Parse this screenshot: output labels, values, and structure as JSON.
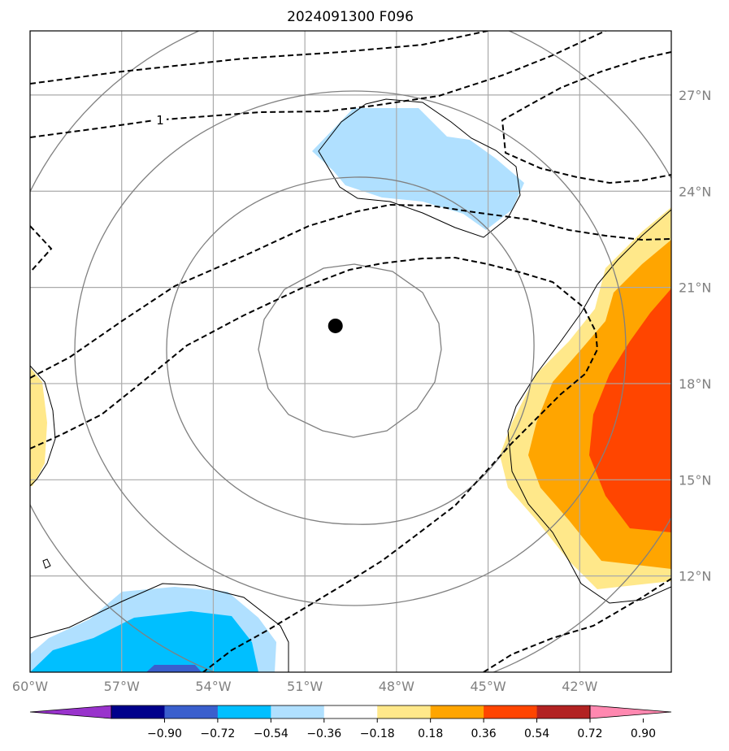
{
  "title": "2024091300 F096",
  "map": {
    "lon_range": [
      -60,
      -39
    ],
    "lat_range": [
      9,
      29
    ],
    "lon_ticks": [
      -60,
      -57,
      -54,
      -51,
      -48,
      -45,
      -42
    ],
    "lat_ticks": [
      12,
      15,
      18,
      21,
      24,
      27
    ],
    "lon_tick_labels": [
      "60°W",
      "57°W",
      "54°W",
      "51°W",
      "48°W",
      "45°W",
      "42°W"
    ],
    "lat_tick_labels": [
      "12°N",
      "15°N",
      "18°N",
      "21°N",
      "24°N",
      "27°N"
    ],
    "storm_center": {
      "lon": -50.0,
      "lat": 19.8
    },
    "contour_label": "1"
  },
  "colorbar": {
    "tick_labels": [
      "−0.90",
      "−0.72",
      "−0.54",
      "−0.36",
      "−0.18",
      "0.18",
      "0.36",
      "0.54",
      "0.72",
      "0.90"
    ],
    "colors": [
      "#9933cc",
      "#00008b",
      "#3a5fcd",
      "#00bfff",
      "#b0e0ff",
      "#ffffff",
      "#ffe88a",
      "#ffa500",
      "#ff4500",
      "#b22222",
      "#ff88b0"
    ]
  },
  "colors": {
    "grid": "#aaaaaa",
    "range_rings": "#808080",
    "storm_marker": "#000000"
  }
}
